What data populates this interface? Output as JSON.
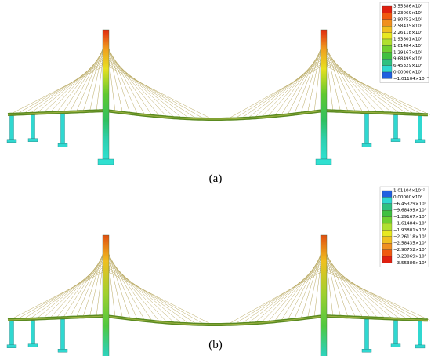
{
  "panels": [
    {
      "label": "(a)",
      "legend": [
        "3.55386×10¹",
        "3.23069×10¹",
        "2.90752×10¹",
        "2.58435×10¹",
        "2.26118×10¹",
        "1.93801×10¹",
        "1.61484×10¹",
        "1.29167×10¹",
        "9.68499×10⁰",
        "6.45329×10⁰",
        "0.00000×10⁰",
        "−1.01104×10⁻²"
      ]
    },
    {
      "label": "(b)",
      "legend": [
        "1.01104×10⁻²",
        "0.00000×10⁰",
        "−6.45329×10⁰",
        "−9.68499×10⁰",
        "−1.29167×10¹",
        "−1.61484×10¹",
        "−1.93801×10¹",
        "−2.26118×10¹",
        "−2.58435×10¹",
        "−2.90752×10¹",
        "−3.23069×10¹",
        "−3.55386×10¹"
      ]
    }
  ]
}
